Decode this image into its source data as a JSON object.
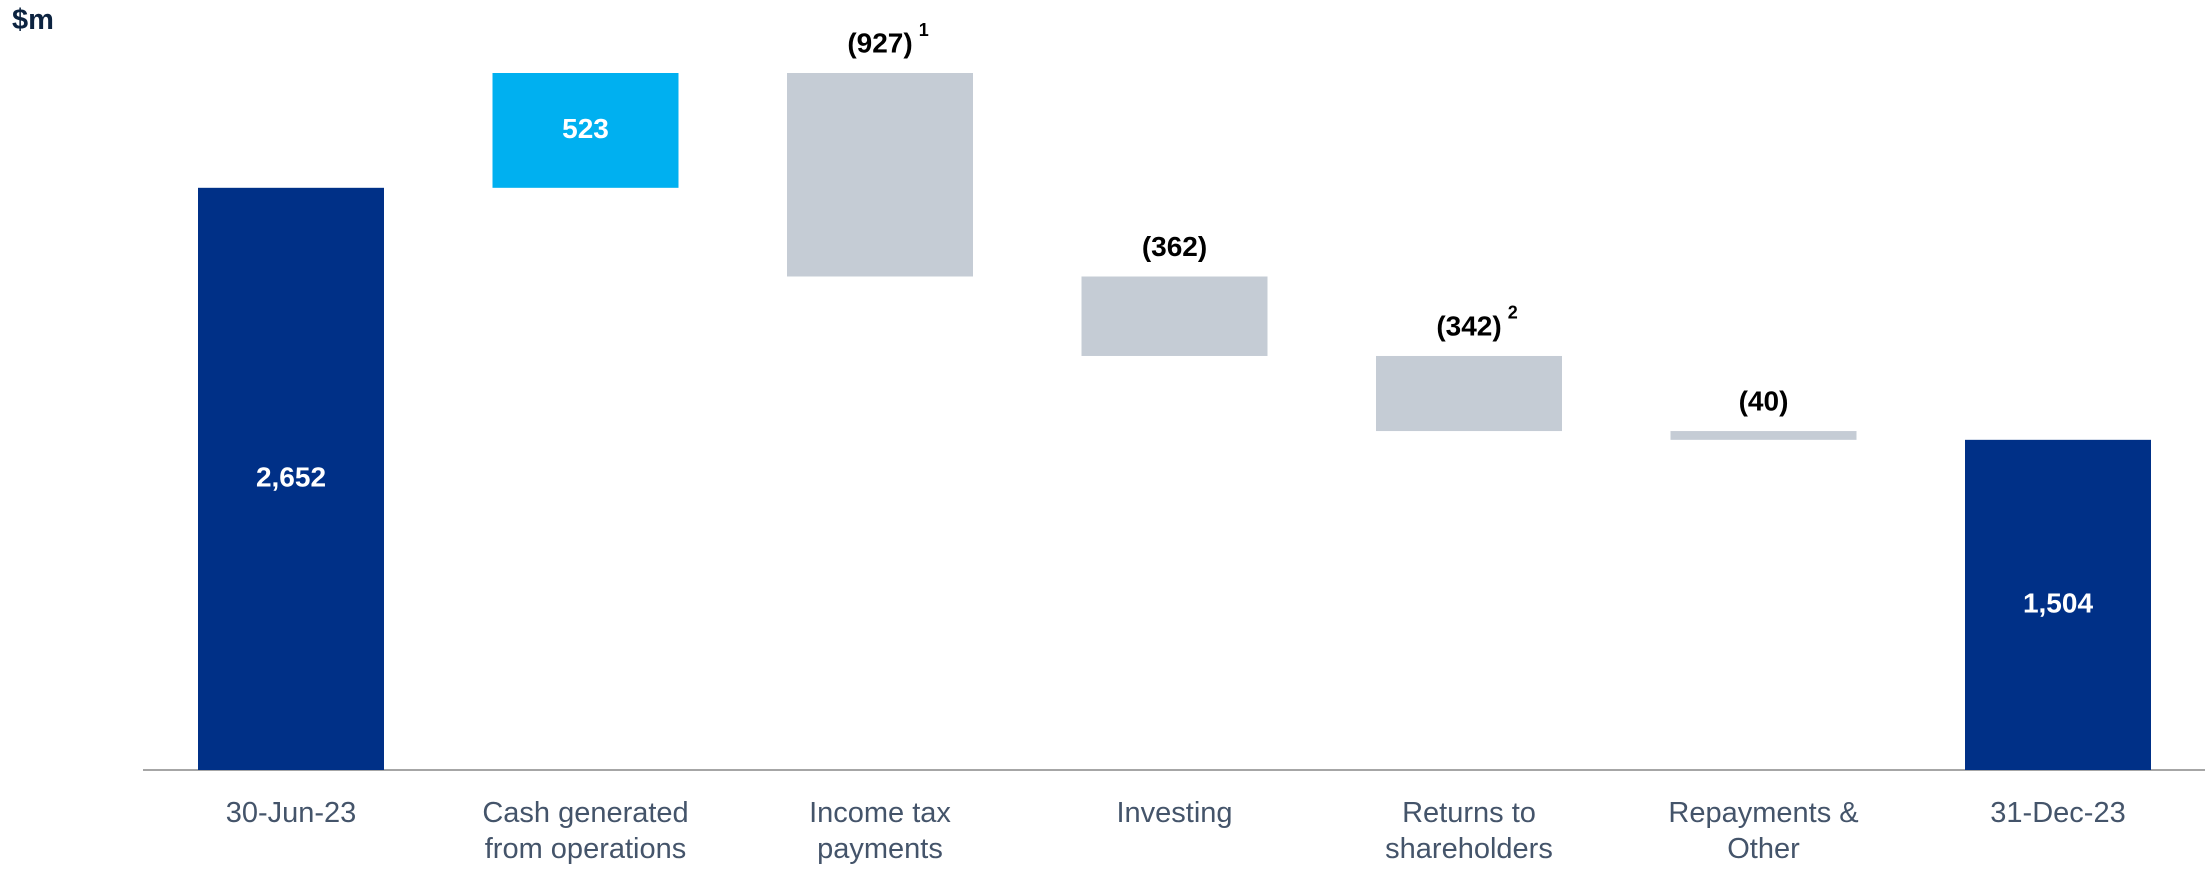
{
  "chart_data": {
    "type": "waterfall",
    "unit_label": "$m",
    "categories": [
      "30-Jun-23",
      "Cash generated from operations",
      "Income tax payments",
      "Investing",
      "Returns to shareholders",
      "Repayments & Other",
      "31-Dec-23"
    ],
    "values": [
      2652,
      523,
      -927,
      -362,
      -342,
      -40,
      1504
    ],
    "value_labels": [
      "2,652",
      "523",
      "(927)",
      "(362)",
      "(342)",
      "(40)",
      "1,504"
    ],
    "footnotes": [
      null,
      null,
      "1",
      null,
      "2",
      null,
      null
    ],
    "colors": {
      "total": "#003087",
      "increase": "#00b0f0",
      "decrease": "#c5ccd5"
    }
  }
}
